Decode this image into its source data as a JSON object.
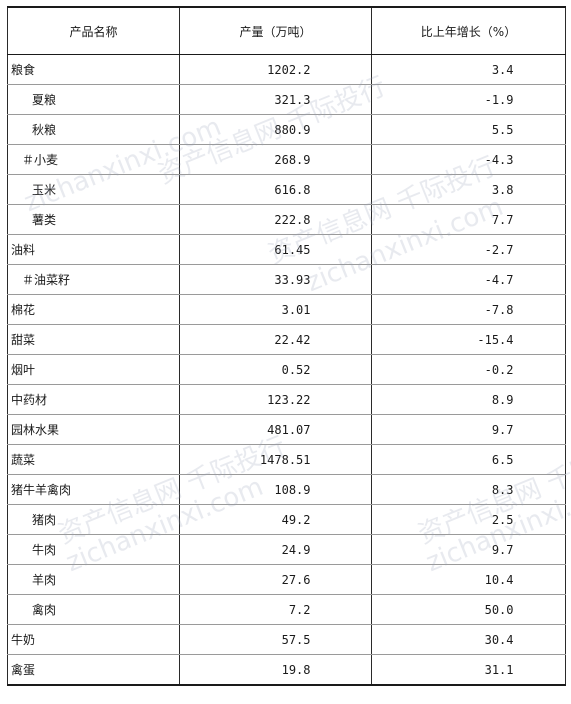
{
  "table": {
    "headers": [
      "产品名称",
      "产量（万吨）",
      "比上年增长（%）"
    ],
    "rows": [
      {
        "name": "粮食",
        "output": "1202.2",
        "growth": "3.4",
        "indent": "none"
      },
      {
        "name": "夏粮",
        "output": "321.3",
        "growth": "-1.9",
        "indent": "sub"
      },
      {
        "name": "秋粮",
        "output": "880.9",
        "growth": "5.5",
        "indent": "sub"
      },
      {
        "name": "＃小麦",
        "output": "268.9",
        "growth": "-4.3",
        "indent": "hash"
      },
      {
        "name": "玉米",
        "output": "616.8",
        "growth": "3.8",
        "indent": "sub"
      },
      {
        "name": "薯类",
        "output": "222.8",
        "growth": "7.7",
        "indent": "sub"
      },
      {
        "name": "油料",
        "output": "61.45",
        "growth": "-2.7",
        "indent": "none"
      },
      {
        "name": "＃油菜籽",
        "output": "33.93",
        "growth": "-4.7",
        "indent": "hash"
      },
      {
        "name": "棉花",
        "output": "3.01",
        "growth": "-7.8",
        "indent": "none"
      },
      {
        "name": "甜菜",
        "output": "22.42",
        "growth": "-15.4",
        "indent": "none"
      },
      {
        "name": "烟叶",
        "output": "0.52",
        "growth": "-0.2",
        "indent": "none"
      },
      {
        "name": "中药材",
        "output": "123.22",
        "growth": "8.9",
        "indent": "none"
      },
      {
        "name": "园林水果",
        "output": "481.07",
        "growth": "9.7",
        "indent": "none"
      },
      {
        "name": "蔬菜",
        "output": "1478.51",
        "growth": "6.5",
        "indent": "none"
      },
      {
        "name": "猪牛羊禽肉",
        "output": "108.9",
        "growth": "8.3",
        "indent": "none"
      },
      {
        "name": "猪肉",
        "output": "49.2",
        "growth": "2.5",
        "indent": "sub"
      },
      {
        "name": "牛肉",
        "output": "24.9",
        "growth": "9.7",
        "indent": "sub"
      },
      {
        "name": "羊肉",
        "output": "27.6",
        "growth": "10.4",
        "indent": "sub"
      },
      {
        "name": "禽肉",
        "output": "7.2",
        "growth": "50.0",
        "indent": "sub"
      },
      {
        "name": "牛奶",
        "output": "57.5",
        "growth": "30.4",
        "indent": "none"
      },
      {
        "name": "禽蛋",
        "output": "19.8",
        "growth": "31.1",
        "indent": "none"
      }
    ]
  },
  "watermark": {
    "cn": "资产信息网 千际投行",
    "en": "zichanxinxi.com"
  }
}
